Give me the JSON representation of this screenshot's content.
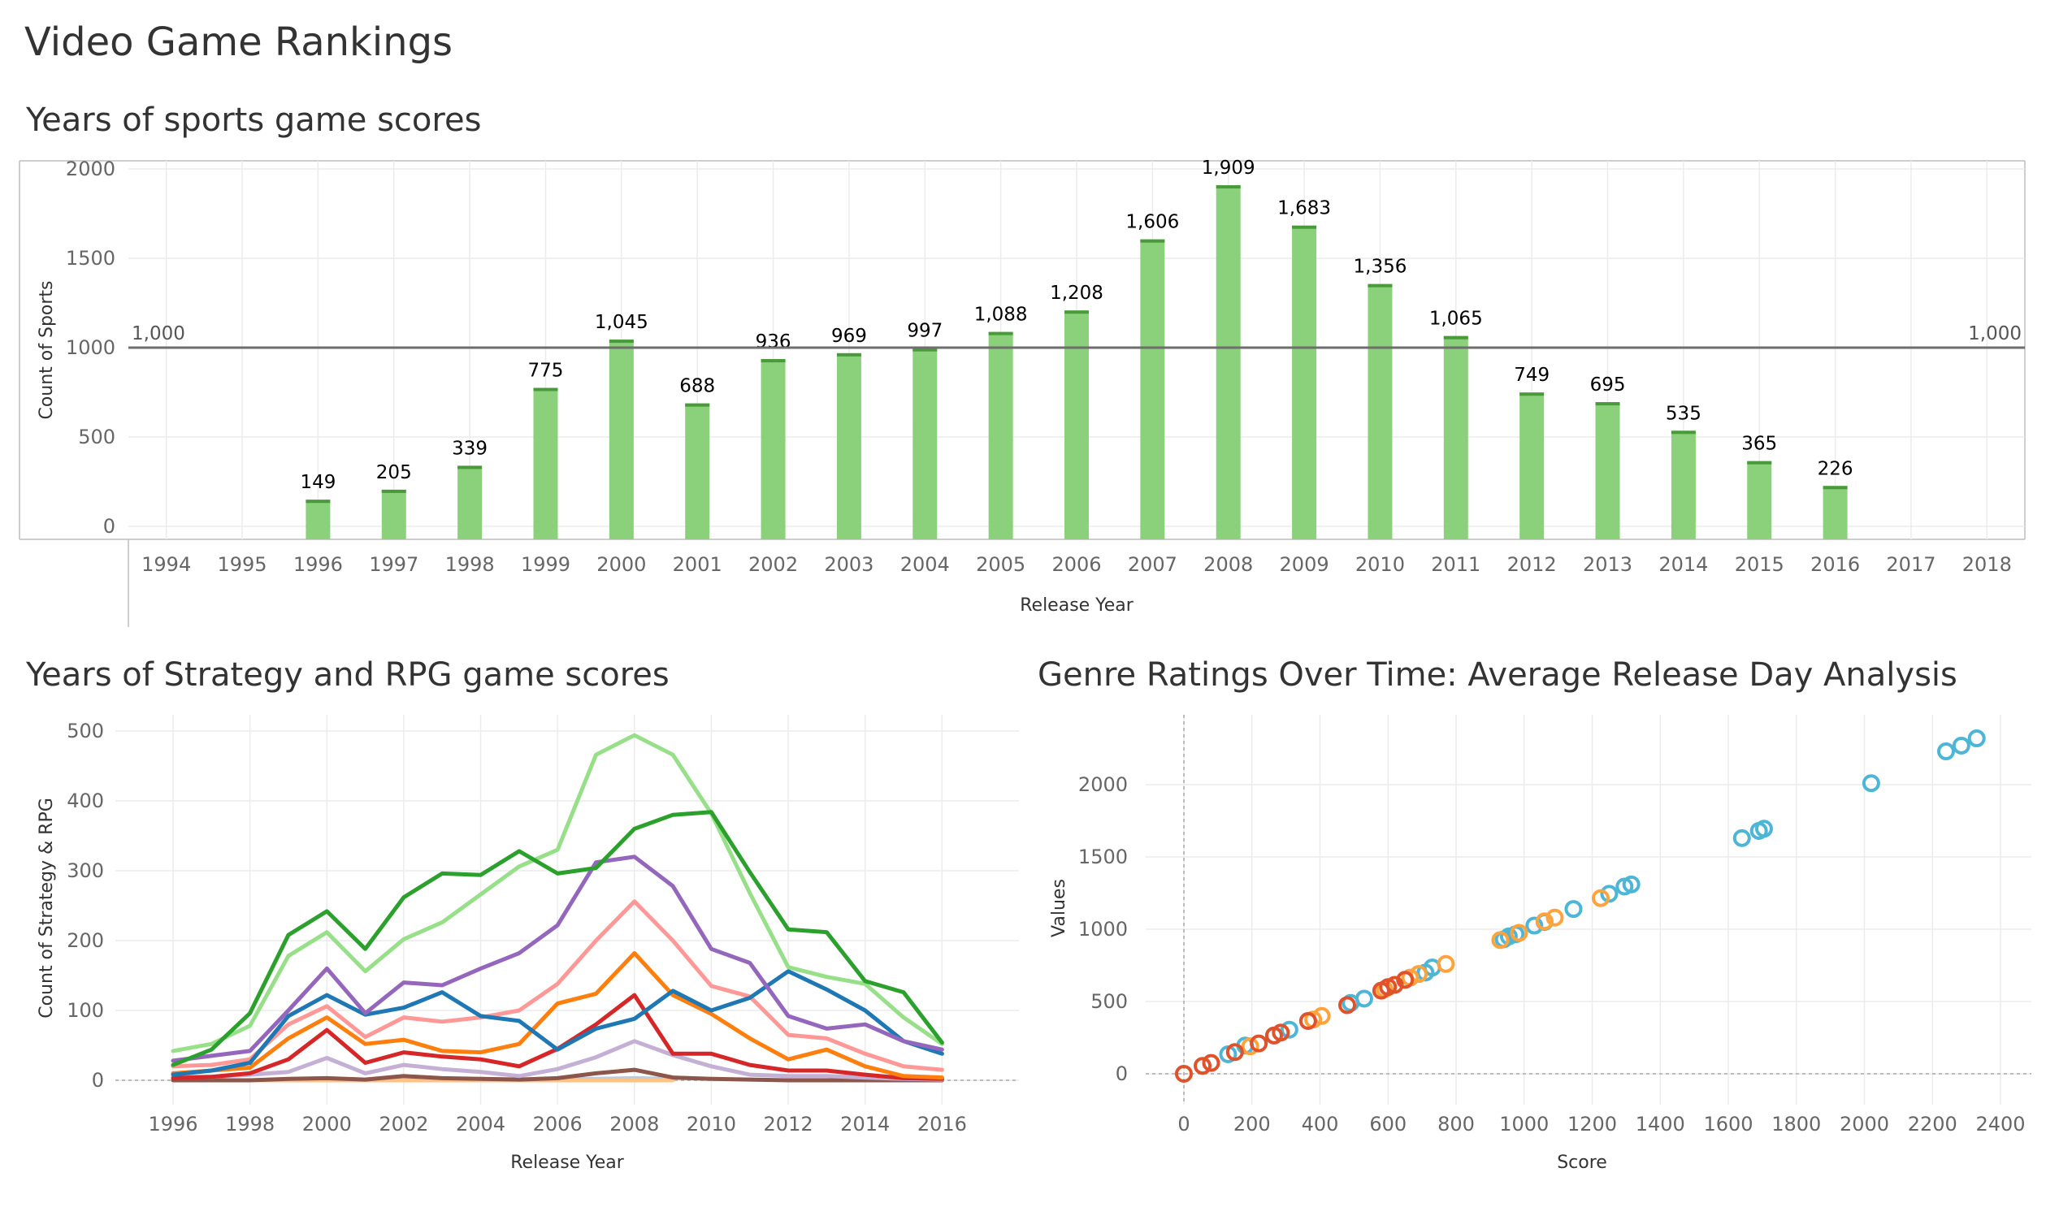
{
  "dashboard": {
    "title": "Video Game Rankings"
  },
  "colors": {
    "bar_fill": "#8bd17b",
    "bar_top": "#4a9a3c",
    "reference_line": "#6e6e6e",
    "scatter_blue": "#4db6d6",
    "scatter_orange": "#ffa43c",
    "scatter_red": "#e0522a"
  },
  "chart_data": [
    {
      "id": "sports",
      "type": "bar",
      "title": "Years of sports game scores",
      "xlabel": "Release Year",
      "ylabel": "Count of Sports",
      "categories": [
        "1994",
        "1995",
        "1996",
        "1997",
        "1998",
        "1999",
        "2000",
        "2001",
        "2002",
        "2003",
        "2004",
        "2005",
        "2006",
        "2007",
        "2008",
        "2009",
        "2010",
        "2011",
        "2012",
        "2013",
        "2014",
        "2015",
        "2016",
        "2017",
        "2018"
      ],
      "values": [
        null,
        null,
        149,
        205,
        339,
        775,
        1045,
        688,
        936,
        969,
        997,
        1088,
        1208,
        1606,
        1909,
        1683,
        1356,
        1065,
        749,
        695,
        535,
        365,
        226,
        null,
        null
      ],
      "value_labels": [
        null,
        null,
        "149",
        "205",
        "339",
        "775",
        "1,045",
        "688",
        "936",
        "969",
        "997",
        "1,088",
        "1,208",
        "1,606",
        "1,909",
        "1,683",
        "1,356",
        "1,065",
        "749",
        "695",
        "535",
        "365",
        "226",
        null,
        null
      ],
      "ylim": [
        0,
        2000
      ],
      "yticks": [
        0,
        500,
        1000,
        1500,
        2000
      ],
      "reference_line": {
        "value": 1000,
        "label": "1,000"
      },
      "grid": true
    },
    {
      "id": "strategy_rpg",
      "type": "line",
      "title": "Years of Strategy and RPG game scores",
      "xlabel": "Release Year",
      "ylabel": "Count of Strategy & RPG",
      "xlim": [
        1994.5,
        2018
      ],
      "ylim": [
        0,
        500
      ],
      "xticks": [
        1996,
        1998,
        2000,
        2002,
        2004,
        2006,
        2008,
        2010,
        2012,
        2014,
        2016
      ],
      "yticks": [
        0,
        100,
        200,
        300,
        400,
        500
      ],
      "grid": true,
      "series": [
        {
          "color": "#b8cbe4",
          "x": [
            1998,
            1999,
            2000,
            2001,
            2002,
            2003,
            2004,
            2005,
            2006,
            2007,
            2008,
            2009
          ],
          "y": [
            0,
            0,
            2,
            0,
            2,
            0,
            2,
            0,
            1,
            2,
            3,
            2
          ]
        },
        {
          "color": "#ffc285",
          "x": [
            1996,
            1997,
            1998,
            1999,
            2000,
            2001,
            2002,
            2003,
            2004,
            2005,
            2006,
            2007,
            2008,
            2009
          ],
          "y": [
            0,
            0,
            0,
            0,
            0,
            0,
            0,
            0,
            0,
            0,
            0,
            0,
            0,
            0
          ]
        },
        {
          "color": "#8c564b",
          "x": [
            1996,
            1997,
            1998,
            1999,
            2000,
            2001,
            2002,
            2003,
            2004,
            2005,
            2006,
            2007,
            2008,
            2009,
            2010,
            2011,
            2012,
            2013,
            2014,
            2015,
            2016
          ],
          "y": [
            0,
            0,
            0,
            2,
            3,
            1,
            6,
            3,
            2,
            1,
            3,
            10,
            15,
            4,
            2,
            1,
            0,
            0,
            0,
            0,
            0
          ]
        },
        {
          "color": "#c5b0d5",
          "x": [
            1996,
            1997,
            1998,
            1999,
            2000,
            2001,
            2002,
            2003,
            2004,
            2005,
            2006,
            2007,
            2008,
            2009,
            2010,
            2011,
            2012,
            2013,
            2014,
            2015,
            2016
          ],
          "y": [
            5,
            5,
            8,
            12,
            32,
            10,
            22,
            16,
            12,
            6,
            16,
            33,
            56,
            36,
            20,
            8,
            6,
            6,
            4,
            2,
            1
          ]
        },
        {
          "color": "#d62728",
          "x": [
            1996,
            1997,
            1998,
            1999,
            2000,
            2001,
            2002,
            2003,
            2004,
            2005,
            2006,
            2007,
            2008,
            2009,
            2010,
            2011,
            2012,
            2013,
            2014,
            2015,
            2016
          ],
          "y": [
            3,
            5,
            10,
            30,
            72,
            25,
            40,
            34,
            30,
            20,
            45,
            80,
            122,
            38,
            38,
            22,
            14,
            14,
            8,
            3,
            2
          ]
        },
        {
          "color": "#ff9896",
          "x": [
            1996,
            1997,
            1998,
            1999,
            2000,
            2001,
            2002,
            2003,
            2004,
            2005,
            2006,
            2007,
            2008,
            2009,
            2010,
            2011,
            2012,
            2013,
            2014,
            2015,
            2016
          ],
          "y": [
            20,
            22,
            30,
            80,
            106,
            62,
            90,
            84,
            90,
            100,
            138,
            200,
            256,
            200,
            135,
            120,
            65,
            60,
            38,
            20,
            15
          ]
        },
        {
          "color": "#ff7f0e",
          "x": [
            1996,
            1997,
            1998,
            1999,
            2000,
            2001,
            2002,
            2003,
            2004,
            2005,
            2006,
            2007,
            2008,
            2009,
            2010,
            2011,
            2012,
            2013,
            2014,
            2015,
            2016
          ],
          "y": [
            10,
            14,
            18,
            60,
            90,
            52,
            58,
            42,
            40,
            52,
            110,
            124,
            182,
            122,
            95,
            60,
            30,
            44,
            20,
            6,
            4
          ]
        },
        {
          "color": "#1f77b4",
          "x": [
            1996,
            1997,
            1998,
            1999,
            2000,
            2001,
            2002,
            2003,
            2004,
            2005,
            2006,
            2007,
            2008,
            2009,
            2010,
            2011,
            2012,
            2013,
            2014,
            2015,
            2016
          ],
          "y": [
            8,
            14,
            25,
            92,
            122,
            94,
            104,
            126,
            92,
            85,
            44,
            74,
            88,
            128,
            100,
            118,
            156,
            130,
            100,
            56,
            38
          ]
        },
        {
          "color": "#9467bd",
          "x": [
            1996,
            1997,
            1998,
            1999,
            2000,
            2001,
            2002,
            2003,
            2004,
            2005,
            2006,
            2007,
            2008,
            2009,
            2010,
            2011,
            2012,
            2013,
            2014,
            2015,
            2016
          ],
          "y": [
            28,
            35,
            42,
            100,
            160,
            96,
            140,
            136,
            160,
            182,
            222,
            312,
            320,
            278,
            188,
            168,
            92,
            74,
            80,
            56,
            44
          ]
        },
        {
          "color": "#98df8a",
          "x": [
            1996,
            1997,
            1998,
            1999,
            2000,
            2001,
            2002,
            2003,
            2004,
            2005,
            2006,
            2007,
            2008,
            2009,
            2010,
            2011,
            2012,
            2013,
            2014,
            2015,
            2016
          ],
          "y": [
            42,
            52,
            78,
            178,
            212,
            156,
            202,
            226,
            266,
            306,
            330,
            466,
            494,
            466,
            382,
            268,
            162,
            148,
            138,
            90,
            52
          ]
        },
        {
          "color": "#2ca02c",
          "x": [
            1996,
            1997,
            1998,
            1999,
            2000,
            2001,
            2002,
            2003,
            2004,
            2005,
            2006,
            2007,
            2008,
            2009,
            2010,
            2011,
            2012,
            2013,
            2014,
            2015,
            2016
          ],
          "y": [
            22,
            44,
            96,
            208,
            242,
            188,
            262,
            296,
            294,
            328,
            296,
            304,
            360,
            380,
            384,
            298,
            216,
            212,
            142,
            126,
            54
          ]
        }
      ]
    },
    {
      "id": "genre_ratings",
      "type": "scatter",
      "title": "Genre Ratings Over Time: Average Release Day Analysis",
      "xlabel": "Score",
      "ylabel": "Values",
      "xlim": [
        -120,
        2480
      ],
      "ylim": [
        -150,
        2400
      ],
      "xticks": [
        0,
        200,
        400,
        600,
        800,
        1000,
        1200,
        1400,
        1600,
        1800,
        2000,
        2200,
        2400
      ],
      "yticks": [
        0,
        500,
        1000,
        1500,
        2000
      ],
      "grid": true,
      "series": [
        {
          "color": "#4db6d6",
          "points": [
            [
              130,
              135
            ],
            [
              180,
              195
            ],
            [
              265,
              265
            ],
            [
              310,
              305
            ],
            [
              490,
              490
            ],
            [
              530,
              520
            ],
            [
              710,
              700
            ],
            [
              730,
              735
            ],
            [
              940,
              930
            ],
            [
              955,
              950
            ],
            [
              975,
              965
            ],
            [
              1030,
              1025
            ],
            [
              1060,
              1050
            ],
            [
              1145,
              1140
            ],
            [
              1250,
              1245
            ],
            [
              1295,
              1295
            ],
            [
              1315,
              1310
            ],
            [
              1640,
              1630
            ],
            [
              1690,
              1680
            ],
            [
              1705,
              1695
            ],
            [
              2020,
              2010
            ],
            [
              2240,
              2230
            ],
            [
              2285,
              2270
            ],
            [
              2330,
              2320
            ]
          ]
        },
        {
          "color": "#ffa43c",
          "points": [
            [
              195,
              190
            ],
            [
              380,
              375
            ],
            [
              405,
              400
            ],
            [
              590,
              585
            ],
            [
              665,
              665
            ],
            [
              690,
              690
            ],
            [
              770,
              760
            ],
            [
              930,
              925
            ],
            [
              985,
              975
            ],
            [
              1060,
              1055
            ],
            [
              1090,
              1080
            ],
            [
              1225,
              1215
            ]
          ]
        },
        {
          "color": "#e0522a",
          "points": [
            [
              0,
              0
            ],
            [
              55,
              55
            ],
            [
              80,
              75
            ],
            [
              150,
              150
            ],
            [
              220,
              210
            ],
            [
              265,
              265
            ],
            [
              285,
              285
            ],
            [
              365,
              365
            ],
            [
              480,
              475
            ],
            [
              580,
              575
            ],
            [
              600,
              600
            ],
            [
              620,
              615
            ],
            [
              650,
              650
            ]
          ]
        }
      ]
    }
  ]
}
